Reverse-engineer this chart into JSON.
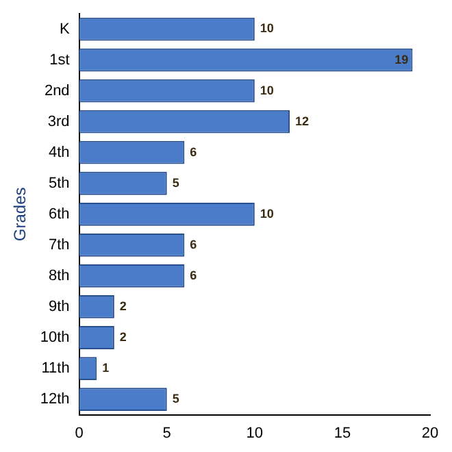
{
  "chart_data": {
    "type": "bar",
    "orientation": "horizontal",
    "ylabel": "Grades",
    "categories": [
      "K",
      "1st",
      "2nd",
      "3rd",
      "4th",
      "5th",
      "6th",
      "7th",
      "8th",
      "9th",
      "10th",
      "11th",
      "12th"
    ],
    "values": [
      10,
      19,
      10,
      12,
      6,
      5,
      10,
      6,
      6,
      2,
      2,
      1,
      5
    ],
    "color": "#4a7cc9",
    "xlim": [
      0,
      20
    ],
    "xticks": [
      0,
      5,
      10,
      15,
      20
    ],
    "grid": false,
    "legend": false,
    "data_labels": true
  }
}
